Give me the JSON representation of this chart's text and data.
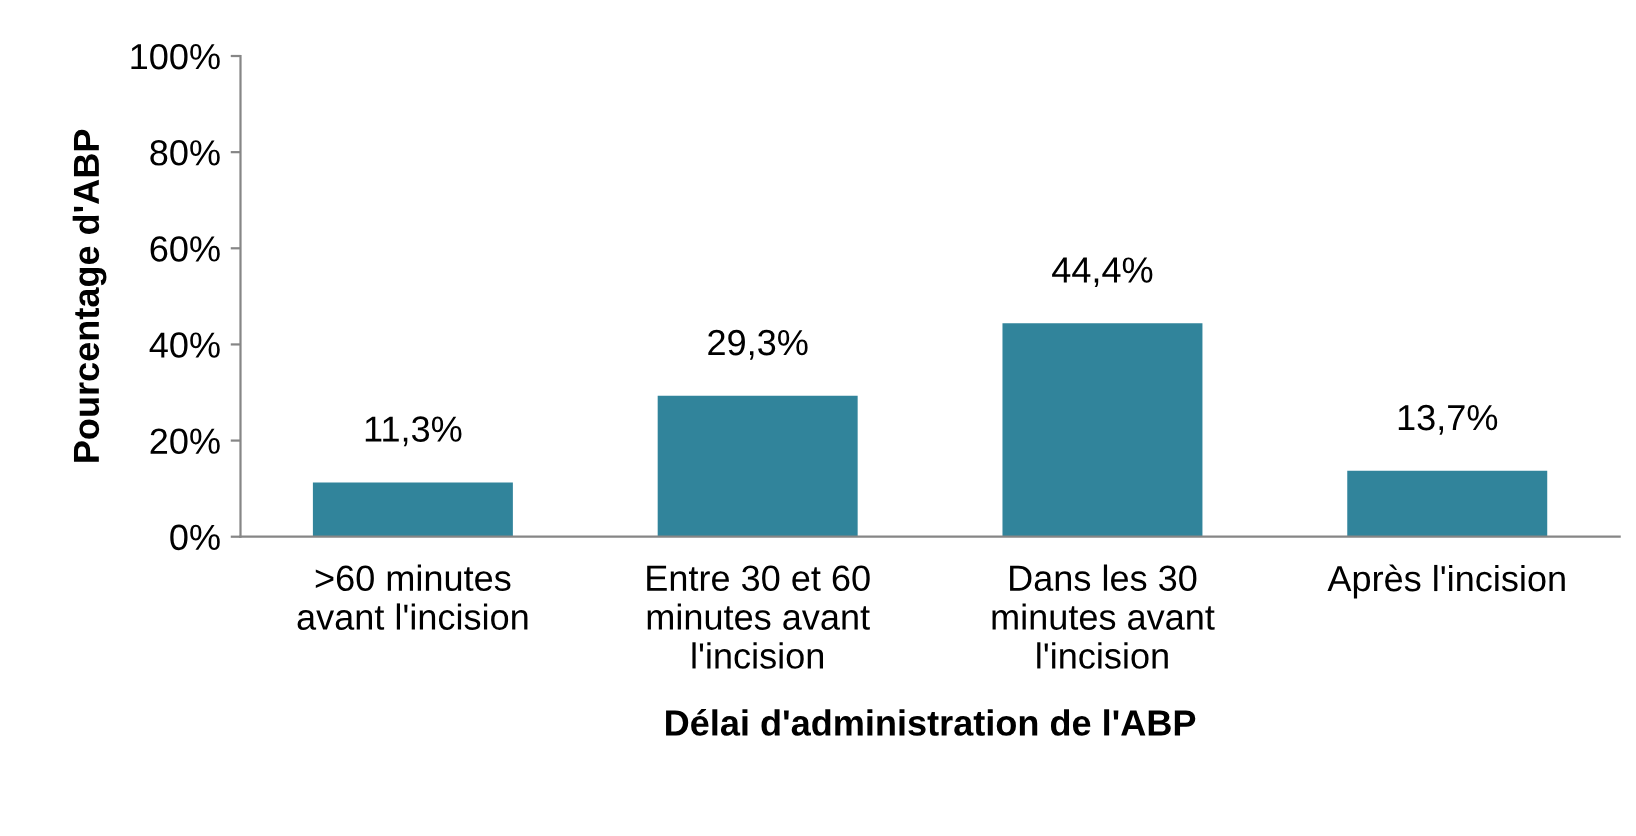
{
  "chart_data": {
    "type": "bar",
    "xlabel": "Délai d'administration de l'ABP",
    "ylabel": "Pourcentage d'ABP",
    "categories": [
      ">60 minutes\navant l'incision",
      "Entre 30 et 60\nminutes avant\nl'incision",
      "Dans les 30\nminutes avant\nl'incision",
      "Après l'incision"
    ],
    "values": [
      11.3,
      29.3,
      44.4,
      13.7
    ],
    "value_labels": [
      "11,3%",
      "29,3%",
      "44,4%",
      "13,7%"
    ],
    "color": "#31849b",
    "ylim": [
      0,
      100
    ],
    "yticks": [
      {
        "value": 0,
        "label": "0%"
      },
      {
        "value": 20,
        "label": "20%"
      },
      {
        "value": 40,
        "label": "40%"
      },
      {
        "value": 60,
        "label": "60%"
      },
      {
        "value": 80,
        "label": "80%"
      },
      {
        "value": 100,
        "label": "100%"
      }
    ],
    "grid": false,
    "legend": false
  }
}
